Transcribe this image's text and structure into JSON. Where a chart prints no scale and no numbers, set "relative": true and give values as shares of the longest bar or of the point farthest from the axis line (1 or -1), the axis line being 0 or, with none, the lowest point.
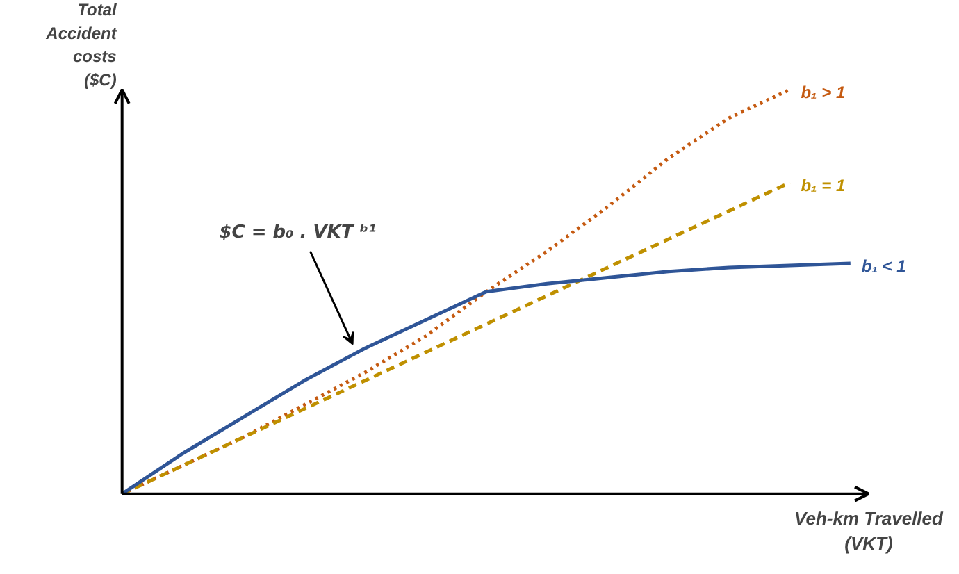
{
  "chart_data": {
    "type": "line",
    "relative": true,
    "grid": false,
    "legend": false,
    "ylabel": "Total\nAccident\ncosts\n($C)",
    "xlabel": "Veh-km Travelled\n(VKT)",
    "categories": [
      null,
      null,
      null,
      null,
      null,
      null,
      null,
      null,
      null,
      null,
      null,
      null,
      null
    ],
    "series": [
      {
        "name": "b₁ > 1",
        "color": "#c55a11",
        "line_style": "dotted",
        "values": [
          0,
          0.07,
          0.14,
          0.22,
          0.3,
          0.39,
          0.5,
          0.6,
          0.71,
          0.83,
          0.93,
          1.0,
          null
        ]
      },
      {
        "name": "b₁ = 1",
        "color": "#bf9000",
        "line_style": "dashed",
        "values": [
          0,
          0.07,
          0.14,
          0.21,
          0.28,
          0.35,
          0.42,
          0.49,
          0.56,
          0.63,
          0.7,
          0.77,
          null
        ]
      },
      {
        "name": "b₁ < 1",
        "color": "#2f5597",
        "line_style": "solid",
        "values": [
          0,
          0.1,
          0.19,
          0.28,
          0.36,
          0.43,
          0.5,
          0.52,
          0.535,
          0.55,
          0.56,
          0.565,
          0.57
        ]
      }
    ],
    "annotations": [
      "$C = b₀ . VKT ᵇ¹"
    ]
  }
}
